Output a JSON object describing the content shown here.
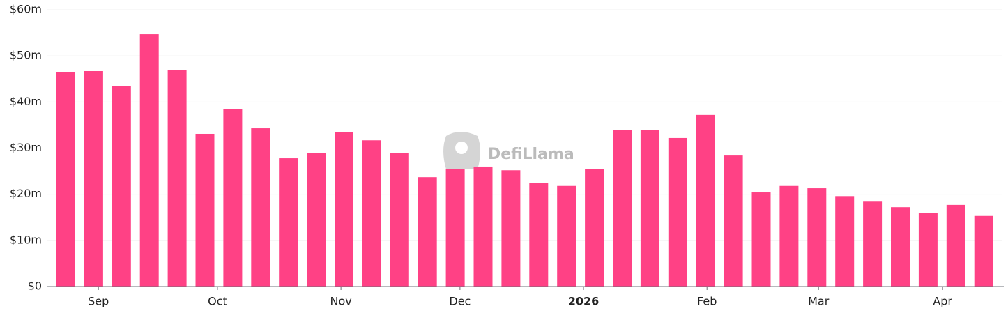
{
  "chart_data": {
    "type": "bar",
    "watermark": "DefiLlama",
    "categories": [
      null,
      null,
      null,
      null,
      null,
      null,
      null,
      null,
      null,
      null,
      null,
      null,
      null,
      null,
      null,
      null,
      null,
      null,
      null,
      null,
      null,
      null,
      null,
      null,
      null,
      null,
      null,
      null,
      null,
      null,
      null,
      null,
      null,
      null
    ],
    "values": [
      46.4,
      46.7,
      43.4,
      54.7,
      47.0,
      33.1,
      38.4,
      34.3,
      27.8,
      28.9,
      33.4,
      31.7,
      29.0,
      23.7,
      25.4,
      26.0,
      25.2,
      22.5,
      21.8,
      25.4,
      34.0,
      34.0,
      32.2,
      37.2,
      28.4,
      20.4,
      21.8,
      21.3,
      19.6,
      18.4,
      17.2,
      15.9,
      17.7,
      15.3
    ],
    "color": "#ff4185",
    "ylim": [
      0,
      60
    ],
    "yticks": [
      {
        "value": 0,
        "label": "$0"
      },
      {
        "value": 10,
        "label": "$10m"
      },
      {
        "value": 20,
        "label": "$20m"
      },
      {
        "value": 30,
        "label": "$30m"
      },
      {
        "value": 40,
        "label": "$40m"
      },
      {
        "value": 50,
        "label": "$50m"
      },
      {
        "value": 60,
        "label": "$60m"
      }
    ],
    "xticks": [
      {
        "value": 1.17,
        "label": "Sep"
      },
      {
        "value": 5.45,
        "label": "Oct"
      },
      {
        "value": 9.89,
        "label": "Nov"
      },
      {
        "value": 14.17,
        "label": "Dec"
      },
      {
        "value": 18.61,
        "label": "2026",
        "bold": true
      },
      {
        "value": 23.05,
        "label": "Feb"
      },
      {
        "value": 27.06,
        "label": "Mar"
      },
      {
        "value": 31.52,
        "label": "Apr"
      }
    ],
    "grid": true
  }
}
